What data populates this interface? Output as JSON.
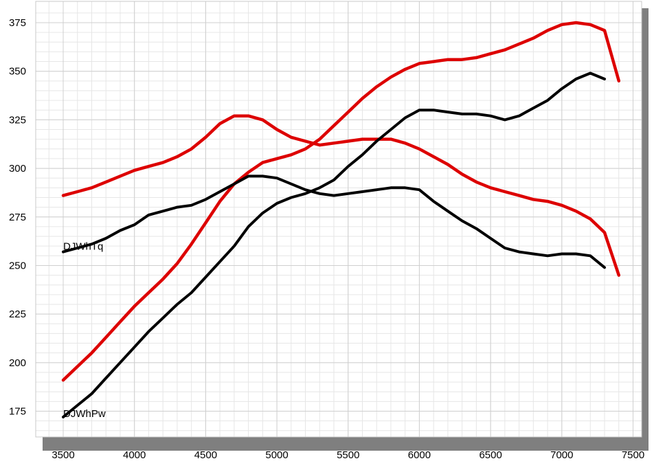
{
  "chart_data": {
    "type": "line",
    "title": "",
    "xlabel": "",
    "ylabel": "",
    "xlim": [
      3400,
      7600
    ],
    "ylim": [
      160,
      380
    ],
    "x_ticks": [
      3500,
      4000,
      4500,
      5000,
      5500,
      6000,
      6500,
      7000,
      7500
    ],
    "y_ticks": [
      175,
      200,
      225,
      250,
      275,
      300,
      325,
      350,
      375
    ],
    "x_tick_labels": [
      "3500",
      "4000",
      "4500",
      "5000",
      "5500",
      "6000",
      "6500",
      "7000",
      "7500"
    ],
    "y_tick_labels": [
      "175",
      "200",
      "225",
      "250",
      "275",
      "300",
      "325",
      "350",
      "375"
    ],
    "grid": true,
    "annotations": [
      {
        "text": "DJWhTq",
        "x": 3500,
        "y": 257
      },
      {
        "text": "DJWhPw",
        "x": 3500,
        "y": 171
      }
    ],
    "series": [
      {
        "color": "#dd0000",
        "x": [
          3500,
          3600,
          3700,
          3800,
          3900,
          4000,
          4100,
          4200,
          4300,
          4400,
          4500,
          4600,
          4700,
          4800,
          4900,
          5000,
          5100,
          5200,
          5300,
          5400,
          5500,
          5600,
          5700,
          5800,
          5900,
          6000,
          6100,
          6200,
          6300,
          6400,
          6500,
          6600,
          6700,
          6800,
          6900,
          7000,
          7100,
          7200,
          7300,
          7400
        ],
        "y": [
          286,
          288,
          290,
          293,
          296,
          299,
          301,
          303,
          306,
          310,
          316,
          323,
          327,
          327,
          325,
          320,
          316,
          314,
          312,
          313,
          314,
          315,
          315,
          315,
          313,
          310,
          306,
          302,
          297,
          293,
          290,
          288,
          286,
          284,
          283,
          281,
          278,
          274,
          267,
          245
        ]
      },
      {
        "color": "#dd0000",
        "x": [
          3500,
          3600,
          3700,
          3800,
          3900,
          4000,
          4100,
          4200,
          4300,
          4400,
          4500,
          4600,
          4700,
          4800,
          4900,
          5000,
          5100,
          5200,
          5300,
          5400,
          5500,
          5600,
          5700,
          5800,
          5900,
          6000,
          6100,
          6200,
          6300,
          6400,
          6500,
          6600,
          6700,
          6800,
          6900,
          7000,
          7100,
          7200,
          7300,
          7400
        ],
        "y": [
          191,
          198,
          205,
          213,
          221,
          229,
          236,
          243,
          251,
          261,
          272,
          283,
          292,
          298,
          303,
          305,
          307,
          310,
          315,
          322,
          329,
          336,
          342,
          347,
          351,
          354,
          355,
          356,
          356,
          357,
          359,
          361,
          364,
          367,
          371,
          374,
          375,
          374,
          371,
          345
        ]
      },
      {
        "color": "#000000",
        "x": [
          3500,
          3600,
          3700,
          3800,
          3900,
          4000,
          4100,
          4200,
          4300,
          4400,
          4500,
          4600,
          4700,
          4800,
          4900,
          5000,
          5100,
          5200,
          5300,
          5400,
          5500,
          5600,
          5700,
          5800,
          5900,
          6000,
          6100,
          6200,
          6300,
          6400,
          6500,
          6600,
          6700,
          6800,
          6900,
          7000,
          7100,
          7200,
          7300
        ],
        "y": [
          257,
          259,
          261,
          264,
          268,
          271,
          276,
          278,
          280,
          281,
          284,
          288,
          292,
          296,
          296,
          295,
          292,
          289,
          287,
          286,
          287,
          288,
          289,
          290,
          290,
          289,
          283,
          278,
          273,
          269,
          264,
          259,
          257,
          256,
          255,
          256,
          256,
          255,
          249
        ]
      },
      {
        "color": "#000000",
        "x": [
          3500,
          3600,
          3700,
          3800,
          3900,
          4000,
          4100,
          4200,
          4300,
          4400,
          4500,
          4600,
          4700,
          4800,
          4900,
          5000,
          5100,
          5200,
          5300,
          5400,
          5500,
          5600,
          5700,
          5800,
          5900,
          6000,
          6100,
          6200,
          6300,
          6400,
          6500,
          6600,
          6700,
          6800,
          6900,
          7000,
          7100,
          7200,
          7300
        ],
        "y": [
          172,
          178,
          184,
          192,
          200,
          208,
          216,
          223,
          230,
          236,
          244,
          252,
          260,
          270,
          277,
          282,
          285,
          287,
          290,
          294,
          301,
          307,
          314,
          320,
          326,
          330,
          330,
          329,
          328,
          328,
          327,
          325,
          327,
          331,
          335,
          341,
          346,
          349,
          346
        ]
      }
    ]
  }
}
